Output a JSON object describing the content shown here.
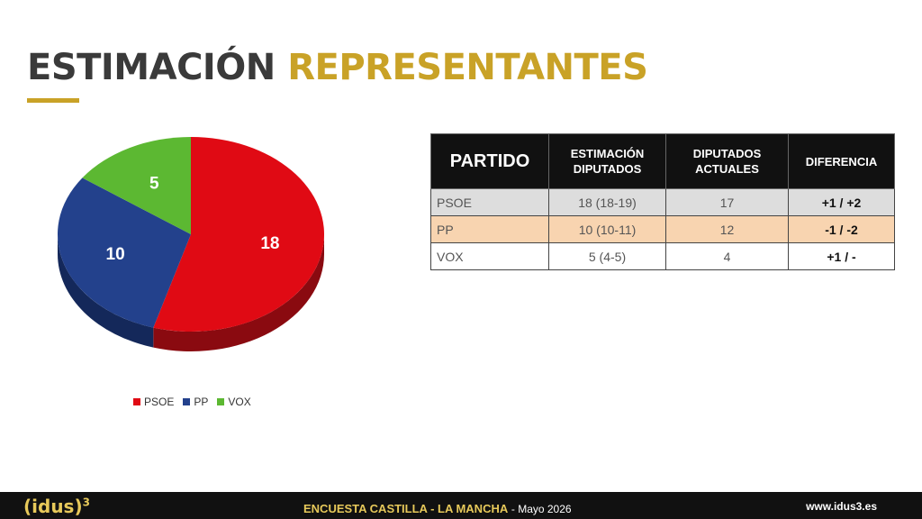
{
  "title": {
    "part1": "ESTIMACIÓN",
    "part2": "REPRESENTANTES"
  },
  "chart_data": {
    "type": "pie",
    "categories": [
      "PSOE",
      "PP",
      "VOX"
    ],
    "values": [
      18,
      10,
      5
    ],
    "colors": [
      "#e00a14",
      "#23418c",
      "#5cb832"
    ],
    "side_colors": [
      "#8a0a10",
      "#14285a",
      "#3a7a1e"
    ],
    "legend": [
      "PSOE",
      "PP",
      "VOX"
    ],
    "legend_position": "bottom"
  },
  "table": {
    "headers": [
      "PARTIDO",
      "ESTIMACIÓN DIPUTADOS",
      "DIPUTADOS ACTUALES",
      "DIFERENCIA"
    ],
    "rows": [
      {
        "party": "PSOE",
        "estimate": "18 (18-19)",
        "current": "17",
        "diff": "+1 / +2"
      },
      {
        "party": "PP",
        "estimate": "10 (10-11)",
        "current": "12",
        "diff": "-1 / -2"
      },
      {
        "party": "VOX",
        "estimate": "5 (4-5)",
        "current": "4",
        "diff": "+1 / -"
      }
    ]
  },
  "footer": {
    "logo": "(idus)",
    "logo_sup": "3",
    "survey": "ENCUESTA CASTILLA - LA MANCHA",
    "date": "- Mayo 2026",
    "url": "www.idus3.es"
  }
}
